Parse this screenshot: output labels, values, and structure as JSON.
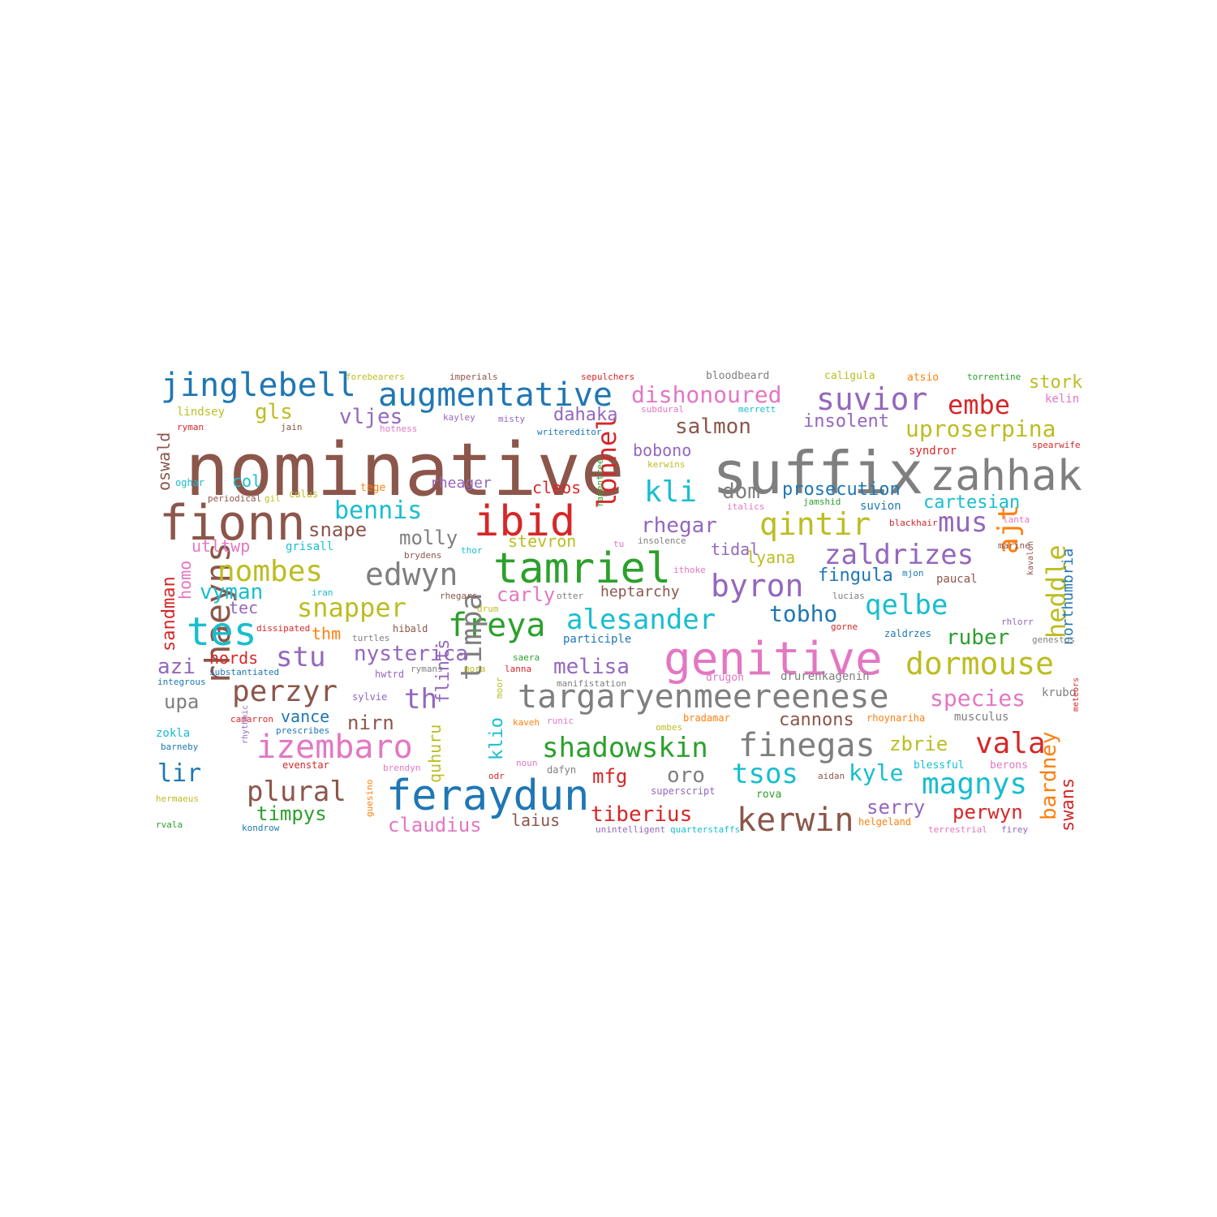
{
  "palette": {
    "blue": "#1f77b4",
    "orange": "#ff7f0e",
    "green": "#2ca02c",
    "red": "#d62728",
    "purple": "#9467bd",
    "brown": "#8c564b",
    "pink": "#e377c2",
    "gray": "#7f7f7f",
    "olive": "#bcbd22",
    "cyan": "#17becf"
  },
  "words": [
    {
      "text": "nominative",
      "weight": 100,
      "color": "brown"
    },
    {
      "text": "suffix",
      "weight": 80,
      "color": "gray"
    },
    {
      "text": "genitive",
      "weight": 64,
      "color": "pink"
    },
    {
      "text": "fionn",
      "weight": 62,
      "color": "brown"
    },
    {
      "text": "feraydun",
      "weight": 58,
      "color": "blue"
    },
    {
      "text": "zahhak",
      "weight": 58,
      "color": "gray"
    },
    {
      "text": "tamriel",
      "weight": 56,
      "color": "green"
    },
    {
      "text": "ibid",
      "weight": 56,
      "color": "red"
    },
    {
      "text": "rhaeyns",
      "weight": 48,
      "color": "brown"
    },
    {
      "text": "tes",
      "weight": 50,
      "color": "cyan"
    },
    {
      "text": "targaryenmeereenese",
      "weight": 50,
      "color": "gray"
    },
    {
      "text": "izembaro",
      "weight": 46,
      "color": "pink"
    },
    {
      "text": "augmentative",
      "weight": 45,
      "color": "blue"
    },
    {
      "text": "jinglebell",
      "weight": 45,
      "color": "blue"
    },
    {
      "text": "finegas",
      "weight": 44,
      "color": "gray"
    },
    {
      "text": "kerwin",
      "weight": 44,
      "color": "brown"
    },
    {
      "text": "freya",
      "weight": 44,
      "color": "green"
    },
    {
      "text": "dormouse",
      "weight": 43,
      "color": "olive"
    },
    {
      "text": "timpa",
      "weight": 42,
      "color": "gray"
    },
    {
      "text": "edwyn",
      "weight": 42,
      "color": "gray"
    },
    {
      "text": "byron",
      "weight": 42,
      "color": "purple"
    },
    {
      "text": "suvior",
      "weight": 41,
      "color": "purple"
    },
    {
      "text": "qintir",
      "weight": 41,
      "color": "olive"
    },
    {
      "text": "magnys",
      "weight": 40,
      "color": "cyan"
    },
    {
      "text": "vala",
      "weight": 40,
      "color": "red"
    },
    {
      "text": "shadowskin",
      "weight": 40,
      "color": "green"
    },
    {
      "text": "perzyr",
      "weight": 40,
      "color": "brown"
    },
    {
      "text": "nombes",
      "weight": 40,
      "color": "olive"
    },
    {
      "text": "kli",
      "weight": 40,
      "color": "cyan"
    },
    {
      "text": "ajt",
      "weight": 40,
      "color": "orange"
    },
    {
      "text": "zaldrizes",
      "weight": 39,
      "color": "purple"
    },
    {
      "text": "alesander",
      "weight": 39,
      "color": "cyan"
    },
    {
      "text": "tsos",
      "weight": 38,
      "color": "cyan"
    },
    {
      "text": "qelbe",
      "weight": 38,
      "color": "cyan"
    },
    {
      "text": "plural",
      "weight": 38,
      "color": "brown"
    },
    {
      "text": "stu",
      "weight": 38,
      "color": "purple"
    },
    {
      "text": "lonnel",
      "weight": 38,
      "color": "red"
    },
    {
      "text": "heddle",
      "weight": 38,
      "color": "olive"
    },
    {
      "text": "mus",
      "weight": 38,
      "color": "purple"
    },
    {
      "text": "th",
      "weight": 38,
      "color": "purple"
    },
    {
      "text": "snapper",
      "weight": 36,
      "color": "olive"
    },
    {
      "text": "embe",
      "weight": 36,
      "color": "red"
    },
    {
      "text": "bennis",
      "weight": 35,
      "color": "cyan"
    },
    {
      "text": "dishonoured",
      "weight": 34,
      "color": "pink"
    },
    {
      "text": "bardney",
      "weight": 32,
      "color": "orange"
    },
    {
      "text": "species",
      "weight": 32,
      "color": "pink"
    },
    {
      "text": "uproserpina",
      "weight": 32,
      "color": "olive"
    },
    {
      "text": "lir",
      "weight": 32,
      "color": "blue"
    },
    {
      "text": "kyle",
      "weight": 32,
      "color": "cyan"
    },
    {
      "text": "melisa",
      "weight": 31,
      "color": "purple"
    },
    {
      "text": "dom",
      "weight": 30,
      "color": "gray"
    },
    {
      "text": "tobho",
      "weight": 30,
      "color": "blue"
    },
    {
      "text": "vyman",
      "weight": 30,
      "color": "cyan"
    },
    {
      "text": "azi",
      "weight": 30,
      "color": "purple"
    },
    {
      "text": "salmon",
      "weight": 30,
      "color": "brown"
    },
    {
      "text": "rhegar",
      "weight": 30,
      "color": "purple"
    },
    {
      "text": "nysterica",
      "weight": 30,
      "color": "purple"
    },
    {
      "text": "tiberius",
      "weight": 30,
      "color": "red"
    },
    {
      "text": "ruber",
      "weight": 30,
      "color": "green"
    },
    {
      "text": "timpys",
      "weight": 30,
      "color": "green"
    },
    {
      "text": "oro",
      "weight": 30,
      "color": "gray"
    },
    {
      "text": "gls",
      "weight": 30,
      "color": "olive"
    },
    {
      "text": "vljes",
      "weight": 30,
      "color": "purple"
    },
    {
      "text": "snape",
      "weight": 28,
      "color": "brown"
    },
    {
      "text": "cartesian",
      "weight": 28,
      "color": "cyan"
    },
    {
      "text": "mfg",
      "weight": 28,
      "color": "red"
    },
    {
      "text": "perwyn",
      "weight": 28,
      "color": "red"
    },
    {
      "text": "serry",
      "weight": 28,
      "color": "purple"
    },
    {
      "text": "claudius",
      "weight": 28,
      "color": "pink"
    },
    {
      "text": "molly",
      "weight": 28,
      "color": "gray"
    },
    {
      "text": "carly",
      "weight": 28,
      "color": "pink"
    },
    {
      "text": "zbrie",
      "weight": 28,
      "color": "olive"
    },
    {
      "text": "nirn",
      "weight": 28,
      "color": "brown"
    },
    {
      "text": "upa",
      "weight": 28,
      "color": "gray"
    },
    {
      "text": "insolent",
      "weight": 26,
      "color": "purple"
    },
    {
      "text": "prosecution",
      "weight": 26,
      "color": "blue"
    },
    {
      "text": "cannons",
      "weight": 26,
      "color": "brown"
    },
    {
      "text": "stork",
      "weight": 26,
      "color": "olive"
    },
    {
      "text": "fingula",
      "weight": 26,
      "color": "blue"
    },
    {
      "text": "swans",
      "weight": 26,
      "color": "red"
    },
    {
      "text": "dahaka",
      "weight": 26,
      "color": "purple"
    },
    {
      "text": "flints",
      "weight": 26,
      "color": "purple"
    },
    {
      "text": "sandman",
      "weight": 26,
      "color": "red"
    },
    {
      "text": "klio",
      "weight": 26,
      "color": "cyan"
    },
    {
      "text": "cleos",
      "weight": 24,
      "color": "red"
    },
    {
      "text": "quhuru",
      "weight": 24,
      "color": "olive"
    },
    {
      "text": "vance",
      "weight": 24,
      "color": "blue"
    },
    {
      "text": "tidal",
      "weight": 24,
      "color": "purple"
    },
    {
      "text": "bobono",
      "weight": 24,
      "color": "purple"
    },
    {
      "text": "lyana",
      "weight": 24,
      "color": "olive"
    },
    {
      "text": "stevron",
      "weight": 24,
      "color": "olive"
    },
    {
      "text": "oswald",
      "weight": 24,
      "color": "brown"
    },
    {
      "text": "homo",
      "weight": 24,
      "color": "pink"
    },
    {
      "text": "col",
      "weight": 24,
      "color": "cyan"
    },
    {
      "text": "laius",
      "weight": 24,
      "color": "brown"
    },
    {
      "text": "tec",
      "weight": 24,
      "color": "purple"
    },
    {
      "text": "nords",
      "weight": 24,
      "color": "red"
    },
    {
      "text": "northumbria",
      "weight": 22,
      "color": "blue"
    },
    {
      "text": "thm",
      "weight": 22,
      "color": "orange"
    },
    {
      "text": "utltwp",
      "weight": 22,
      "color": "pink"
    },
    {
      "text": "heptarchy",
      "weight": 20,
      "color": "brown"
    },
    {
      "text": "rheager",
      "weight": 20,
      "color": "purple"
    },
    {
      "text": "zokla",
      "weight": 18,
      "color": "cyan"
    },
    {
      "text": "grisall",
      "weight": 17,
      "color": "cyan"
    },
    {
      "text": "lindsey",
      "weight": 17,
      "color": "olive"
    },
    {
      "text": "participle",
      "weight": 17,
      "color": "blue"
    },
    {
      "text": "drurenkagenin",
      "weight": 17,
      "color": "gray"
    },
    {
      "text": "musculus",
      "weight": 16,
      "color": "gray"
    },
    {
      "text": "kelin",
      "weight": 16,
      "color": "pink"
    },
    {
      "text": "krubo",
      "weight": 16,
      "color": "gray"
    },
    {
      "text": "suvion",
      "weight": 16,
      "color": "blue"
    },
    {
      "text": "paucal",
      "weight": 16,
      "color": "brown"
    },
    {
      "text": "syndror",
      "weight": 16,
      "color": "red"
    },
    {
      "text": "blessful",
      "weight": 15,
      "color": "cyan"
    },
    {
      "text": "rova",
      "weight": 15,
      "color": "green"
    },
    {
      "text": "berons",
      "weight": 15,
      "color": "pink"
    },
    {
      "text": "bloodbeard",
      "weight": 15,
      "color": "gray"
    },
    {
      "text": "atsio",
      "weight": 15,
      "color": "orange"
    },
    {
      "text": "caligula",
      "weight": 15,
      "color": "olive"
    },
    {
      "text": "drugon",
      "weight": 15,
      "color": "pink"
    },
    {
      "text": "tege",
      "weight": 15,
      "color": "orange"
    },
    {
      "text": "culus",
      "weight": 14,
      "color": "olive"
    },
    {
      "text": "zaldrzes",
      "weight": 14,
      "color": "blue"
    },
    {
      "text": "hwtrd",
      "weight": 14,
      "color": "purple"
    },
    {
      "text": "helgeland",
      "weight": 14,
      "color": "orange"
    },
    {
      "text": "evenstar",
      "weight": 14,
      "color": "red"
    },
    {
      "text": "bradamar",
      "weight": 14,
      "color": "orange"
    },
    {
      "text": "rhoynariha",
      "weight": 14,
      "color": "orange"
    },
    {
      "text": "sylvie",
      "weight": 14,
      "color": "purple"
    },
    {
      "text": "dafyn",
      "weight": 14,
      "color": "gray"
    },
    {
      "text": "hibald",
      "weight": 14,
      "color": "brown"
    },
    {
      "text": "oghar",
      "weight": 14,
      "color": "cyan"
    },
    {
      "text": "superscript",
      "weight": 14,
      "color": "purple"
    },
    {
      "text": "genestos",
      "weight": 14,
      "color": "gray"
    },
    {
      "text": "lanna",
      "weight": 14,
      "color": "red"
    },
    {
      "text": "saera",
      "weight": 14,
      "color": "green"
    },
    {
      "text": "rvala",
      "weight": 14,
      "color": "green"
    },
    {
      "text": "integrous",
      "weight": 14,
      "color": "blue"
    },
    {
      "text": "raventree",
      "weight": 13,
      "color": "green"
    },
    {
      "text": "guesino",
      "weight": 13,
      "color": "orange"
    },
    {
      "text": "moor",
      "weight": 13,
      "color": "olive"
    },
    {
      "text": "torrentine",
      "weight": 12,
      "color": "green"
    },
    {
      "text": "forebearers",
      "weight": 12,
      "color": "olive"
    },
    {
      "text": "imperials",
      "weight": 12,
      "color": "brown"
    },
    {
      "text": "sepulchers",
      "weight": 12,
      "color": "red"
    },
    {
      "text": "merrett",
      "weight": 12,
      "color": "cyan"
    },
    {
      "text": "subdural",
      "weight": 12,
      "color": "pink"
    },
    {
      "text": "misty",
      "weight": 12,
      "color": "purple"
    },
    {
      "text": "kayley",
      "weight": 12,
      "color": "purple"
    },
    {
      "text": "spearwife",
      "weight": 12,
      "color": "red"
    },
    {
      "text": "kerwins",
      "weight": 12,
      "color": "olive"
    },
    {
      "text": "italics",
      "weight": 12,
      "color": "pink"
    },
    {
      "text": "jamshid",
      "weight": 12,
      "color": "green"
    },
    {
      "text": "blackhair",
      "weight": 12,
      "color": "red"
    },
    {
      "text": "lanta",
      "weight": 12,
      "color": "pink"
    },
    {
      "text": "marine",
      "weight": 12,
      "color": "brown"
    },
    {
      "text": "rhlorr",
      "weight": 12,
      "color": "purple"
    },
    {
      "text": "gorne",
      "weight": 12,
      "color": "red"
    },
    {
      "text": "turtles",
      "weight": 12,
      "color": "gray"
    },
    {
      "text": "dissipated",
      "weight": 12,
      "color": "red"
    },
    {
      "text": "rhegars",
      "weight": 12,
      "color": "brown"
    },
    {
      "text": "otter",
      "weight": 12,
      "color": "gray"
    },
    {
      "text": "drum",
      "weight": 12,
      "color": "olive"
    },
    {
      "text": "brydens",
      "weight": 12,
      "color": "brown"
    },
    {
      "text": "thor",
      "weight": 12,
      "color": "cyan"
    },
    {
      "text": "insolence",
      "weight": 12,
      "color": "gray"
    },
    {
      "text": "ithoke",
      "weight": 12,
      "color": "pink"
    },
    {
      "text": "lucias",
      "weight": 12,
      "color": "gray"
    },
    {
      "text": "mjon",
      "weight": 12,
      "color": "blue"
    },
    {
      "text": "iran",
      "weight": 12,
      "color": "cyan"
    },
    {
      "text": "jain",
      "weight": 12,
      "color": "brown"
    },
    {
      "text": "ryman",
      "weight": 12,
      "color": "red"
    },
    {
      "text": "periodical",
      "weight": 12,
      "color": "brown"
    },
    {
      "text": "gil",
      "weight": 12,
      "color": "olive"
    },
    {
      "text": "hotness",
      "weight": 12,
      "color": "pink"
    },
    {
      "text": "writereditor",
      "weight": 12,
      "color": "blue"
    },
    {
      "text": "substantiated",
      "weight": 12,
      "color": "blue"
    },
    {
      "text": "rymans",
      "weight": 12,
      "color": "gray"
    },
    {
      "text": "mora",
      "weight": 12,
      "color": "olive"
    },
    {
      "text": "manifistation",
      "weight": 12,
      "color": "gray"
    },
    {
      "text": "camarron",
      "weight": 12,
      "color": "red"
    },
    {
      "text": "prescribes",
      "weight": 12,
      "color": "blue"
    },
    {
      "text": "runic",
      "weight": 12,
      "color": "pink"
    },
    {
      "text": "kaveh",
      "weight": 12,
      "color": "orange"
    },
    {
      "text": "ombes",
      "weight": 12,
      "color": "olive"
    },
    {
      "text": "meteors",
      "weight": 11,
      "color": "red"
    },
    {
      "text": "barneby",
      "weight": 12,
      "color": "blue"
    },
    {
      "text": "rhythmic",
      "weight": 11,
      "color": "purple"
    },
    {
      "text": "brendyn",
      "weight": 12,
      "color": "pink"
    },
    {
      "text": "noun",
      "weight": 12,
      "color": "pink"
    },
    {
      "text": "odr",
      "weight": 12,
      "color": "red"
    },
    {
      "text": "aidan",
      "weight": 12,
      "color": "brown"
    },
    {
      "text": "hermaeus",
      "weight": 12,
      "color": "olive"
    },
    {
      "text": "kondrow",
      "weight": 12,
      "color": "blue"
    },
    {
      "text": "unintelligent",
      "weight": 12,
      "color": "purple"
    },
    {
      "text": "quarterstaffs",
      "weight": 12,
      "color": "cyan"
    },
    {
      "text": "terrestrial",
      "weight": 12,
      "color": "pink"
    },
    {
      "text": "firey",
      "weight": 12,
      "color": "purple"
    },
    {
      "text": "kavalon",
      "weight": 11,
      "color": "brown"
    },
    {
      "text": "tu",
      "weight": 12,
      "color": "pink"
    }
  ]
}
